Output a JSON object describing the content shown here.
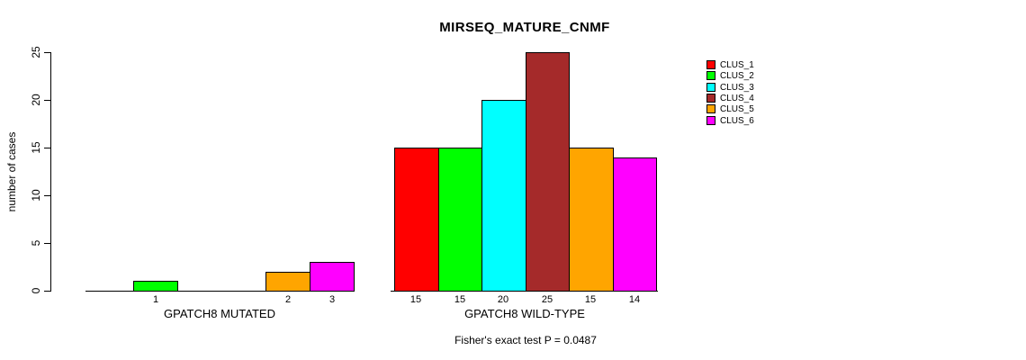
{
  "title": "MIRSEQ_MATURE_CNMF",
  "footer": "Fisher's exact test P = 0.0487",
  "chart_data": {
    "type": "bar",
    "title": "MIRSEQ_MATURE_CNMF",
    "ylabel": "number of cases",
    "xlabel": "",
    "ylim": [
      0,
      25
    ],
    "yticks": [
      0,
      5,
      10,
      15,
      20,
      25
    ],
    "grid": false,
    "legend_position": "right",
    "categories": [
      "GPATCH8 MUTATED",
      "GPATCH8 WILD-TYPE"
    ],
    "series": [
      {
        "name": "CLUS_1",
        "color": "#FF0000",
        "values": [
          0,
          15
        ]
      },
      {
        "name": "CLUS_2",
        "color": "#00FF00",
        "values": [
          1,
          15
        ]
      },
      {
        "name": "CLUS_3",
        "color": "#00FFFF",
        "values": [
          0,
          20
        ]
      },
      {
        "name": "CLUS_4",
        "color": "#A52A2A",
        "values": [
          0,
          25
        ]
      },
      {
        "name": "CLUS_5",
        "color": "#FFA500",
        "values": [
          2,
          15
        ]
      },
      {
        "name": "CLUS_6",
        "color": "#FF00FF",
        "values": [
          3,
          14
        ]
      }
    ],
    "bar_value_labels": {
      "GPATCH8 MUTATED": [
        null,
        1,
        null,
        null,
        2,
        3
      ],
      "GPATCH8 WILD-TYPE": [
        15,
        15,
        20,
        25,
        15,
        14
      ]
    },
    "annotation": "Fisher's exact test P = 0.0487"
  }
}
